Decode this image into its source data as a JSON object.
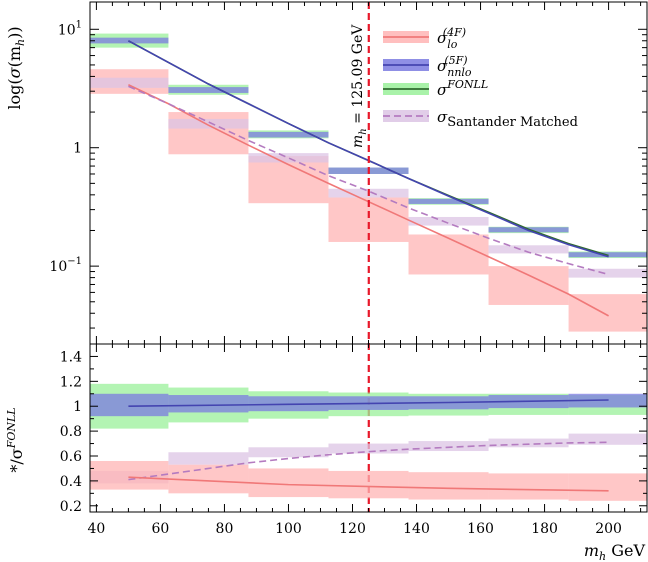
{
  "chart_data": [
    {
      "type": "line",
      "panel": "main",
      "ylabel": "log(σ(m_h))",
      "yscale": "log",
      "xlim": [
        38,
        212
      ],
      "ylim": [
        0.022,
        17
      ],
      "yticks": [
        {
          "value": 0.1,
          "base": "10",
          "exp": "−1"
        },
        {
          "value": 1,
          "base": "1",
          "exp": ""
        },
        {
          "value": 10,
          "base": "10",
          "exp": "1"
        }
      ],
      "bin_edges": [
        37.5,
        62.5,
        87.5,
        112.5,
        137.5,
        162.5,
        187.5,
        212.5
      ],
      "series": [
        {
          "name": "lo_4F",
          "label": "σ",
          "sub": "lo",
          "sup": "(4F)",
          "color": "#f07878",
          "band_color": "#ffb4b4",
          "x": [
            50,
            62.5,
            75,
            87.5,
            100,
            112.5,
            125,
            137.5,
            150,
            162.5,
            175,
            187.5,
            200
          ],
          "line": [
            3.4,
            2.35,
            1.55,
            1.05,
            0.72,
            0.5,
            0.35,
            0.245,
            0.172,
            0.12,
            0.084,
            0.058,
            0.038
          ],
          "bands": [
            [
              2.85,
              4.6
            ],
            [
              0.88,
              2.0
            ],
            [
              0.34,
              0.85
            ],
            [
              0.16,
              0.38
            ],
            [
              0.085,
              0.185
            ],
            [
              0.047,
              0.1
            ],
            [
              0.028,
              0.058
            ]
          ]
        },
        {
          "name": "nnlo_5F",
          "label": "σ",
          "sub": "nnlo",
          "sup": "(5F)",
          "color": "#4444b0",
          "band_color": "#7b7be0",
          "x": [
            50,
            62.5,
            75,
            87.5,
            100,
            112.5,
            125,
            137.5,
            150,
            162.5,
            175,
            187.5,
            200
          ],
          "line": [
            8.0,
            5.25,
            3.45,
            2.35,
            1.6,
            1.1,
            0.78,
            0.55,
            0.39,
            0.28,
            0.2,
            0.152,
            0.12
          ],
          "bands": [
            [
              7.6,
              8.5
            ],
            [
              2.9,
              3.25
            ],
            [
              1.22,
              1.36
            ],
            [
              0.6,
              0.68
            ],
            [
              0.335,
              0.37
            ],
            [
              0.193,
              0.213
            ],
            [
              0.119,
              0.131
            ]
          ]
        },
        {
          "name": "fonll",
          "label": "σ",
          "sub": "",
          "sup": "FONLL",
          "color": "#2f6b2f",
          "band_color": "#9af09a",
          "x": [
            50,
            62.5,
            75,
            87.5,
            100,
            112.5,
            125,
            137.5,
            150,
            162.5,
            175,
            187.5,
            200
          ],
          "line": [
            8.0,
            5.25,
            3.45,
            2.35,
            1.6,
            1.1,
            0.78,
            0.55,
            0.395,
            0.285,
            0.205,
            0.155,
            0.123
          ],
          "bands": [
            [
              7.0,
              9.2
            ],
            [
              2.8,
              3.4
            ],
            [
              1.2,
              1.4
            ],
            [
              0.6,
              0.68
            ],
            [
              0.33,
              0.375
            ],
            [
              0.19,
              0.215
            ],
            [
              0.117,
              0.133
            ]
          ]
        },
        {
          "name": "santander",
          "label": "σ",
          "sub": "Santander Matched",
          "sup": "",
          "color": "#b47bc0",
          "band_color": "#dcc4e4",
          "dashed": true,
          "x": [
            50,
            62.5,
            75,
            87.5,
            100,
            112.5,
            125,
            137.5,
            150,
            162.5,
            175,
            187.5,
            200
          ],
          "line": [
            3.3,
            2.35,
            1.65,
            1.15,
            0.82,
            0.58,
            0.43,
            0.31,
            0.23,
            0.172,
            0.131,
            0.105,
            0.085
          ],
          "bands": [
            [
              3.2,
              3.9
            ],
            [
              1.45,
              1.75
            ],
            [
              0.75,
              0.9
            ],
            [
              0.38,
              0.45
            ],
            [
              0.22,
              0.26
            ],
            [
              0.128,
              0.15
            ],
            [
              0.08,
              0.095
            ]
          ]
        }
      ],
      "annotation": {
        "x": 125.09,
        "text": "m_h = 125.09 GeV",
        "color": "#e8182a"
      }
    },
    {
      "type": "line",
      "panel": "ratio",
      "ylabel": "*/σ^FONLL",
      "xlabel": "m_h GeV",
      "xlim": [
        38,
        212
      ],
      "ylim": [
        0.15,
        1.5
      ],
      "xticks": [
        40,
        60,
        80,
        100,
        120,
        140,
        160,
        180,
        200
      ],
      "xtick_labels": [
        "40",
        "60",
        "80",
        "100",
        "120",
        "140",
        "160",
        "180",
        "200"
      ],
      "yticks": [
        0.2,
        0.4,
        0.6,
        0.8,
        1,
        1.2,
        1.4
      ],
      "ytick_labels": [
        "0.2",
        "0.4",
        "0.6",
        "0.8",
        "1",
        "1.2",
        "1.4"
      ],
      "bin_edges": [
        37.5,
        62.5,
        87.5,
        112.5,
        137.5,
        162.5,
        187.5,
        212.5
      ],
      "series": [
        {
          "name": "fonll_ratio",
          "band_color": "#9af09a",
          "bands": [
            [
              0.82,
              1.18
            ],
            [
              0.87,
              1.15
            ],
            [
              0.9,
              1.12
            ],
            [
              0.92,
              1.11
            ],
            [
              0.925,
              1.1
            ],
            [
              0.93,
              1.1
            ],
            [
              0.93,
              1.09
            ]
          ]
        },
        {
          "name": "nnlo_ratio",
          "color": "#4444b0",
          "band_color": "#7b7be0",
          "x": [
            50,
            100,
            150,
            200
          ],
          "line": [
            1.0,
            1.015,
            1.03,
            1.05
          ],
          "bands": [
            [
              0.92,
              1.1
            ],
            [
              0.95,
              1.09
            ],
            [
              0.96,
              1.08
            ],
            [
              0.97,
              1.08
            ],
            [
              0.975,
              1.08
            ],
            [
              0.985,
              1.09
            ],
            [
              0.99,
              1.1
            ]
          ]
        },
        {
          "name": "santander_ratio",
          "color": "#b47bc0",
          "band_color": "#dcc4e4",
          "dashed": true,
          "x": [
            50,
            62.5,
            75,
            87.5,
            100,
            112.5,
            125,
            137.5,
            150,
            162.5,
            175,
            187.5,
            200
          ],
          "line": [
            0.41,
            0.455,
            0.5,
            0.545,
            0.58,
            0.61,
            0.635,
            0.655,
            0.67,
            0.685,
            0.695,
            0.705,
            0.71
          ],
          "bands": [
            [
              0.38,
              0.48
            ],
            [
              0.53,
              0.63
            ],
            [
              0.59,
              0.67
            ],
            [
              0.62,
              0.7
            ],
            [
              0.64,
              0.72
            ],
            [
              0.67,
              0.74
            ],
            [
              0.69,
              0.78
            ]
          ]
        },
        {
          "name": "lo_ratio",
          "color": "#f07878",
          "band_color": "#ffb4b4",
          "x": [
            50,
            100,
            150,
            200
          ],
          "line": [
            0.43,
            0.37,
            0.34,
            0.32
          ],
          "bands": [
            [
              0.33,
              0.56
            ],
            [
              0.3,
              0.53
            ],
            [
              0.27,
              0.5
            ],
            [
              0.26,
              0.48
            ],
            [
              0.25,
              0.47
            ],
            [
              0.25,
              0.46
            ],
            [
              0.24,
              0.46
            ]
          ]
        }
      ]
    }
  ],
  "xlabel": {
    "var": "m",
    "sub": "h",
    "unit": "GeV"
  },
  "main_ylabel": {
    "prefix": "log(",
    "var": "σ",
    "inner": "(m",
    "sub": "h",
    "suffix": "))"
  },
  "ratio_ylabel": {
    "prefix": "*/σ",
    "sup": "FONLL"
  },
  "annotation_text": {
    "var": "m",
    "sub": "h",
    "rest": " = 125.09 GeV"
  },
  "legend": [
    {
      "base": "σ",
      "sub": "lo",
      "sup": "(4F)",
      "color": "#f07878",
      "band": "#ffb4b4"
    },
    {
      "base": "σ",
      "sub": "nnlo",
      "sup": "(5F)",
      "color": "#4444b0",
      "band": "#7b7be0"
    },
    {
      "base": "σ",
      "sub": "",
      "sup": "FONLL",
      "color": "#2f6b2f",
      "band": "#9af09a"
    },
    {
      "base": "σ",
      "sub": "Santander Matched",
      "sup": "",
      "color": "#b47bc0",
      "band": "#dcc4e4",
      "dashed": true
    }
  ]
}
